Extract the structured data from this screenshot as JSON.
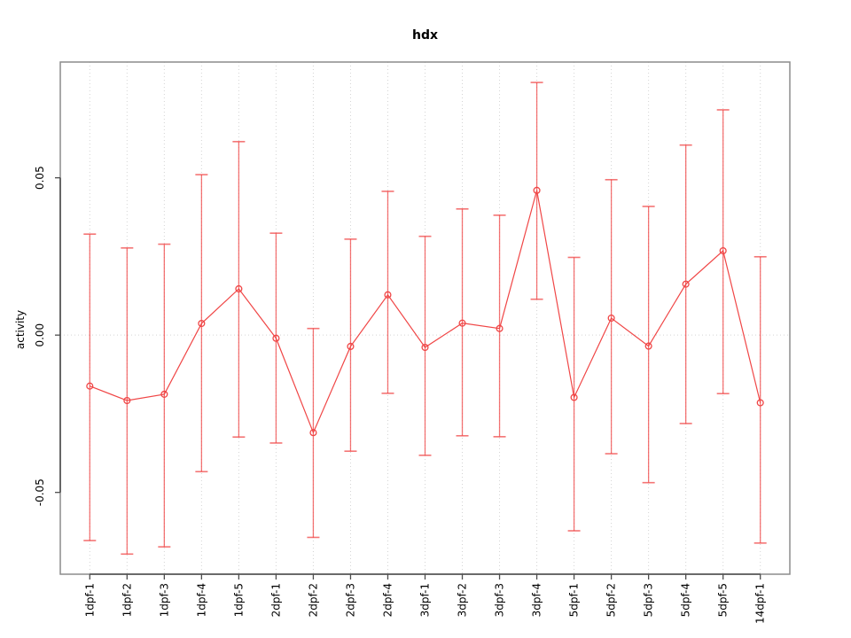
{
  "title": "hdx",
  "chart_data": {
    "type": "line",
    "title": "hdx",
    "xlabel": "",
    "ylabel": "activity",
    "legend": "none",
    "grid": {
      "vertical": "dotted line at every category",
      "horizontal": "dotted line at y=0 only"
    },
    "point_style": "open circle with vertical error bars and caps",
    "categories": [
      "1dpf-1",
      "1dpf-2",
      "1dpf-3",
      "1dpf-4",
      "1dpf-5",
      "2dpf-1",
      "2dpf-2",
      "2dpf-3",
      "2dpf-4",
      "3dpf-1",
      "3dpf-2",
      "3dpf-3",
      "3dpf-4",
      "5dpf-1",
      "5dpf-2",
      "5dpf-3",
      "5dpf-4",
      "5dpf-5",
      "14dpf-1"
    ],
    "series": [
      {
        "name": "activity",
        "values": [
          -0.0162,
          -0.0208,
          -0.0188,
          0.0037,
          0.0147,
          -0.001,
          -0.031,
          -0.0036,
          0.0128,
          -0.0039,
          0.0038,
          0.0021,
          0.046,
          -0.0198,
          0.0054,
          -0.0035,
          0.0162,
          0.0268,
          -0.0215
        ],
        "upper": [
          0.0321,
          0.0277,
          0.0289,
          0.051,
          0.0615,
          0.0324,
          0.0021,
          0.0305,
          0.0457,
          0.0314,
          0.0401,
          0.0381,
          0.0803,
          0.0247,
          0.0494,
          0.0409,
          0.0604,
          0.0716,
          0.0249
        ],
        "lower": [
          -0.0653,
          -0.0696,
          -0.0673,
          -0.0434,
          -0.0324,
          -0.0343,
          -0.0643,
          -0.0369,
          -0.0185,
          -0.0382,
          -0.032,
          -0.0323,
          0.0114,
          -0.0622,
          -0.0377,
          -0.0469,
          -0.0281,
          -0.0186,
          -0.0661
        ]
      }
    ],
    "ylim": [
      -0.076,
      0.0868
    ],
    "yticks": [
      {
        "value": 0.05,
        "label": "0.05"
      },
      {
        "value": 0.0,
        "label": "0.00"
      },
      {
        "value": -0.05,
        "label": "-0.05"
      }
    ],
    "colors": {
      "series": "#f04646",
      "grid": "#d4d4d4",
      "box": "#8c8c8c",
      "axis": "#4d4d4d",
      "text": "#000000",
      "background": "#ffffff"
    }
  }
}
